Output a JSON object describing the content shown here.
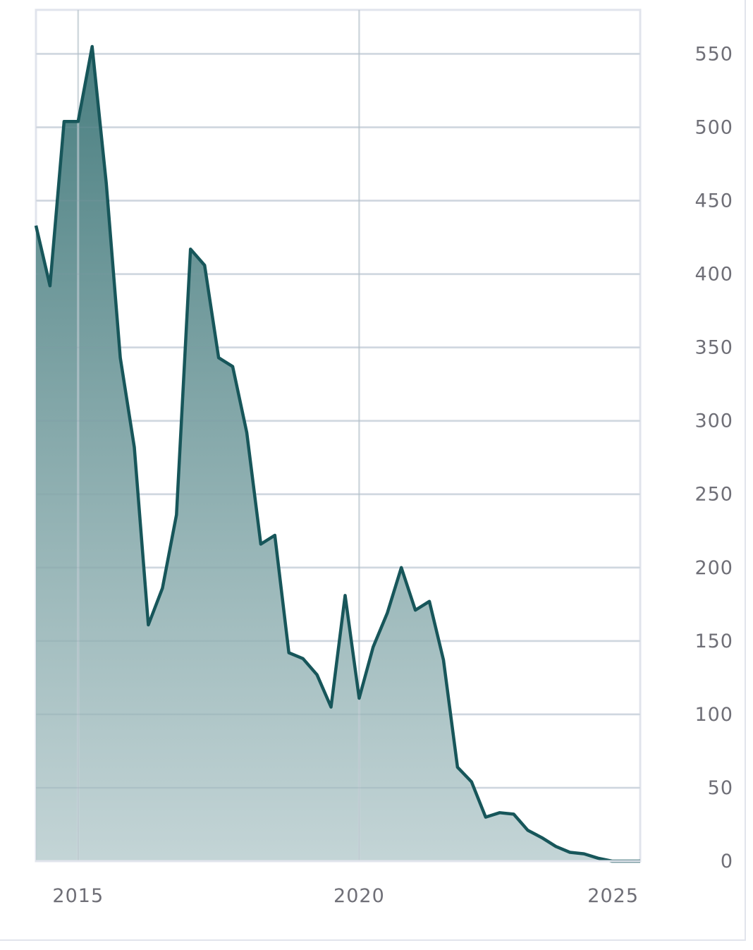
{
  "chart_data": {
    "type": "area",
    "title": "",
    "xlabel": "",
    "ylabel": "",
    "x_ticks": [
      2015,
      2020,
      2025
    ],
    "x_tick_labels": [
      "2015",
      "2020",
      "2025"
    ],
    "y_ticks": [
      0,
      50,
      100,
      150,
      200,
      250,
      300,
      350,
      400,
      450,
      500,
      550
    ],
    "y_tick_labels": [
      "0",
      "50",
      "100",
      "150",
      "200",
      "250",
      "300",
      "350",
      "400",
      "450",
      "500",
      "550"
    ],
    "xlim": [
      2014.25,
      2025.0
    ],
    "ylim": [
      0,
      580
    ],
    "y_axis_side": "right",
    "grid": true,
    "colors": {
      "line": "#17565a",
      "fill_top": "#3f7779",
      "fill_bottom": "#b9cdcf",
      "grid": "#e1e4ec"
    },
    "series": [
      {
        "x": [
          2014.25,
          2014.5,
          2014.75,
          2015.0,
          2015.25,
          2015.5,
          2015.75,
          2016.0,
          2016.25,
          2016.5,
          2016.75,
          2017.0,
          2017.25,
          2017.5,
          2017.75,
          2018.0,
          2018.25,
          2018.5,
          2018.75,
          2019.0,
          2019.25,
          2019.5,
          2019.75,
          2020.0,
          2020.25,
          2020.5,
          2020.75,
          2021.0,
          2021.25,
          2021.5,
          2021.75,
          2022.0,
          2022.25,
          2022.5,
          2022.75,
          2023.0,
          2023.25,
          2023.5,
          2023.75,
          2024.0,
          2024.25,
          2024.5,
          2024.75,
          2025.0
        ],
        "values": [
          433,
          392,
          504,
          504,
          555,
          462,
          343,
          282,
          161,
          186,
          236,
          417,
          406,
          343,
          337,
          292,
          216,
          222,
          142,
          138,
          127,
          105,
          181,
          111,
          146,
          169,
          200,
          171,
          177,
          137,
          64,
          54,
          30,
          33,
          32,
          21,
          16,
          10,
          6,
          5,
          2,
          0,
          0,
          0
        ]
      }
    ]
  }
}
